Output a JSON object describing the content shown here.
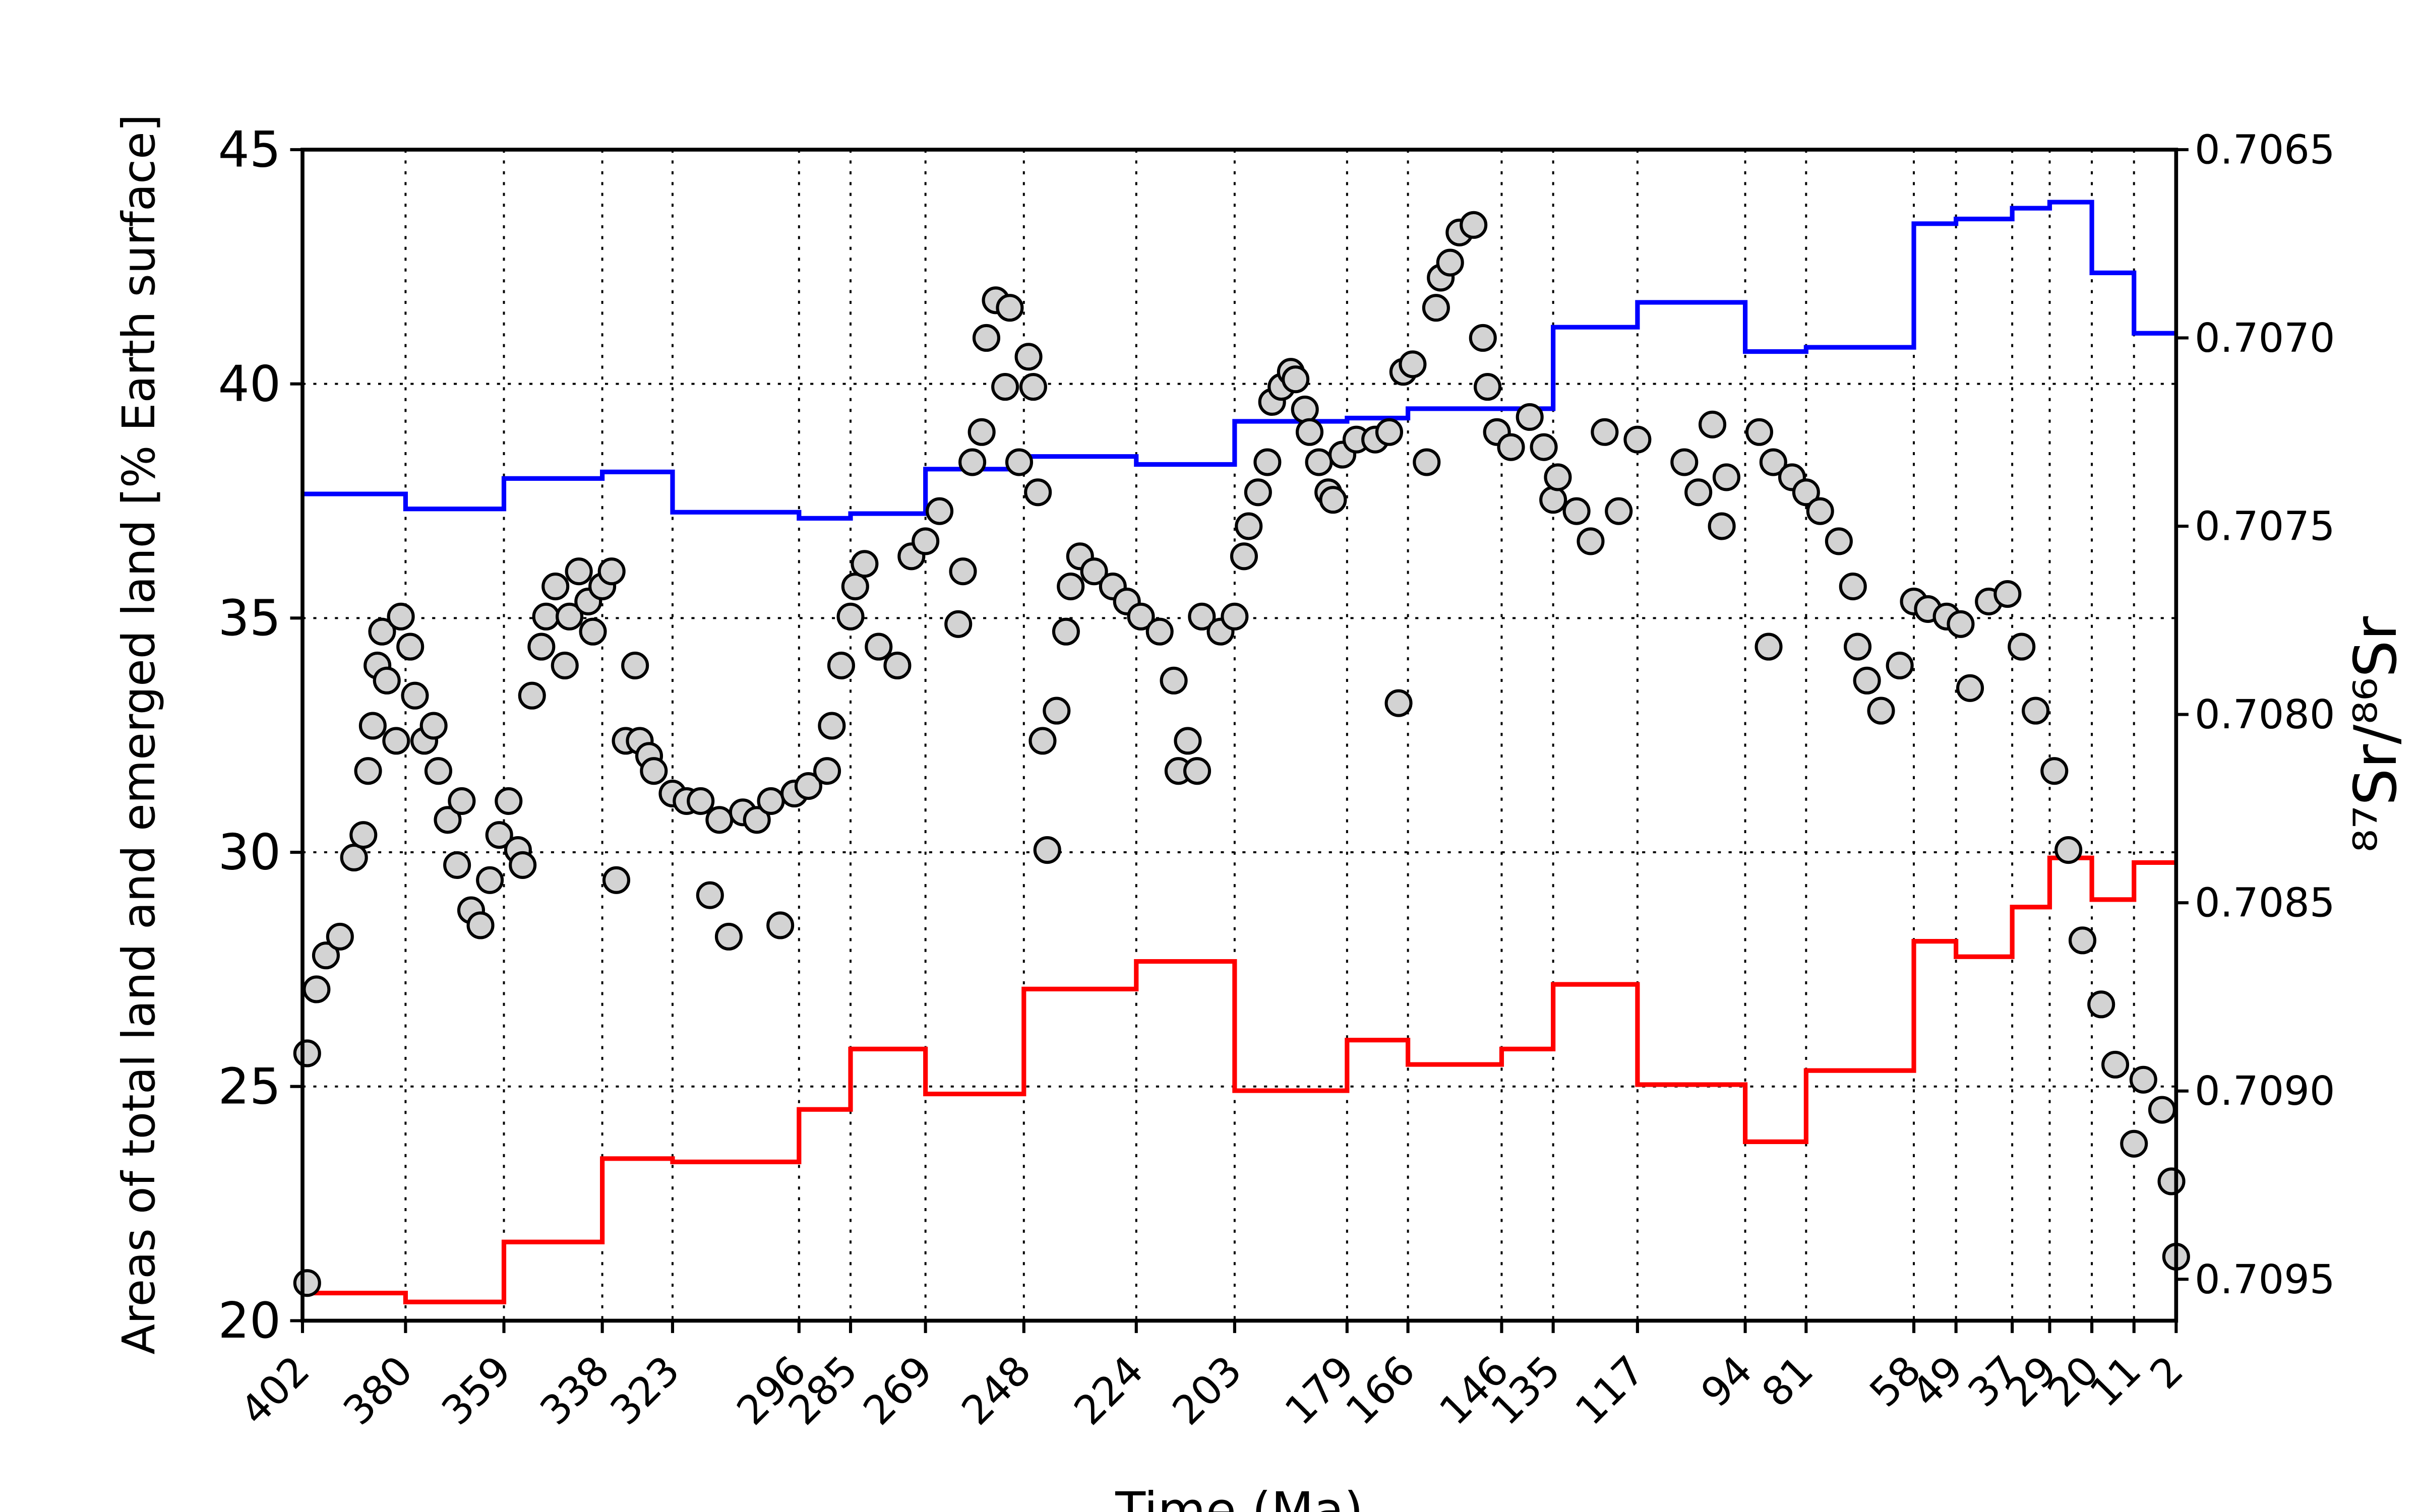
{
  "chart_data": {
    "type": "line",
    "x_label": "Time (Ma)",
    "y_label": "Areas of total land and emerged land [% Earth surface]",
    "y2_label": "⁸⁷Sr/⁸⁶Sr",
    "xlim": [
      402,
      2
    ],
    "xticks": [
      402,
      380,
      359,
      338,
      323,
      296,
      285,
      269,
      248,
      224,
      203,
      179,
      166,
      146,
      135,
      117,
      94,
      81,
      58,
      49,
      37,
      29,
      20,
      11,
      2
    ],
    "ylim": [
      20,
      45
    ],
    "yticks": [
      20,
      25,
      30,
      35,
      40,
      45
    ],
    "y2lim": [
      0.70961,
      0.7065
    ],
    "y2ticks": [
      {
        "value": 0.7065,
        "label": "0.7065"
      },
      {
        "value": 0.707,
        "label": "0.7070"
      },
      {
        "value": 0.7075,
        "label": "0.7075"
      },
      {
        "value": 0.708,
        "label": "0.7080"
      },
      {
        "value": 0.7085,
        "label": "0.7085"
      },
      {
        "value": 0.709,
        "label": "0.7090"
      },
      {
        "value": 0.7095,
        "label": "0.7095"
      }
    ],
    "grid": true,
    "series": [
      {
        "type": "step",
        "color": "#0000ff",
        "x": [
          402,
          380,
          359,
          338,
          323,
          296,
          285,
          269,
          248,
          224,
          203,
          179,
          166,
          146,
          135,
          117,
          94,
          81,
          58,
          49,
          37,
          29,
          20,
          11,
          2
        ],
        "values": [
          37.65,
          37.33,
          37.98,
          38.12,
          37.26,
          37.13,
          37.23,
          38.18,
          38.45,
          38.28,
          39.2,
          39.27,
          39.47,
          39.47,
          41.21,
          41.74,
          40.69,
          40.78,
          43.42,
          43.52,
          43.75,
          43.88,
          42.37,
          41.08,
          41.08
        ]
      },
      {
        "type": "step",
        "color": "#ff0000",
        "x": [
          402,
          380,
          359,
          338,
          323,
          296,
          285,
          269,
          248,
          224,
          203,
          179,
          166,
          146,
          135,
          117,
          94,
          81,
          58,
          49,
          37,
          29,
          20,
          11,
          2
        ],
        "values": [
          20.59,
          20.4,
          21.68,
          23.46,
          23.39,
          24.51,
          25.8,
          24.84,
          27.08,
          27.67,
          24.91,
          25.99,
          25.47,
          25.8,
          27.18,
          25.04,
          23.82,
          25.34,
          28.1,
          27.77,
          28.83,
          29.88,
          28.99,
          29.78,
          29.78
        ]
      },
      {
        "type": "scatter",
        "axis": "y2",
        "color": "#d3d3d3",
        "x": [
          401,
          401,
          399,
          397,
          394,
          391,
          389,
          388,
          387,
          386,
          385,
          384,
          382,
          381,
          379,
          378,
          376,
          374,
          373,
          371,
          369,
          368,
          366,
          364,
          362,
          360,
          358,
          356,
          355,
          353,
          351,
          350,
          348,
          346,
          345,
          343,
          341,
          340,
          338,
          336,
          335,
          333,
          331,
          330,
          328,
          327,
          323,
          320,
          317,
          315,
          313,
          311,
          308,
          305,
          302,
          300,
          297,
          294,
          290,
          289,
          287,
          285,
          284,
          282,
          279,
          275,
          272,
          269,
          266,
          262,
          261,
          259,
          257,
          256,
          254,
          252,
          251,
          249,
          247,
          246,
          245,
          244,
          243,
          241,
          239,
          238,
          236,
          233,
          229,
          226,
          223,
          219,
          216,
          215,
          213,
          211,
          210,
          206,
          203,
          201,
          200,
          198,
          196,
          195,
          193,
          191,
          190,
          188,
          187,
          185,
          183,
          182,
          180,
          177,
          173,
          170,
          168,
          167,
          165,
          162,
          160,
          159,
          157,
          155,
          152,
          150,
          149,
          147,
          144,
          140,
          137,
          135,
          134,
          130,
          127,
          124,
          121,
          117,
          107,
          104,
          101,
          99,
          98,
          91,
          89,
          88,
          84,
          81,
          78,
          74,
          71,
          70,
          68,
          65,
          61,
          58,
          55,
          51,
          48,
          46,
          42,
          38,
          35,
          32,
          28,
          25,
          22,
          18,
          15,
          11,
          9,
          5,
          3,
          2
        ],
        "values": [
          0.70951,
          0.7089,
          0.70873,
          0.70864,
          0.70859,
          0.70838,
          0.70832,
          0.70815,
          0.70803,
          0.70787,
          0.70778,
          0.70791,
          0.70807,
          0.70774,
          0.70782,
          0.70795,
          0.70807,
          0.70803,
          0.70815,
          0.70828,
          0.7084,
          0.70823,
          0.70852,
          0.70856,
          0.70844,
          0.70832,
          0.70823,
          0.70836,
          0.7084,
          0.70795,
          0.70782,
          0.70774,
          0.70766,
          0.70787,
          0.70774,
          0.70762,
          0.7077,
          0.70778,
          0.70766,
          0.70762,
          0.70844,
          0.70807,
          0.70787,
          0.70807,
          0.70811,
          0.70815,
          0.70821,
          0.70823,
          0.70823,
          0.70848,
          0.70828,
          0.70859,
          0.70826,
          0.70828,
          0.70823,
          0.70856,
          0.70821,
          0.70819,
          0.70815,
          0.70803,
          0.70787,
          0.70774,
          0.70766,
          0.7076,
          0.70782,
          0.70787,
          0.70758,
          0.70754,
          0.70746,
          0.70776,
          0.70762,
          0.70733,
          0.70725,
          0.707,
          0.7069,
          0.70713,
          0.70692,
          0.70733,
          0.70705,
          0.70713,
          0.70741,
          0.70807,
          0.70836,
          0.70799,
          0.70778,
          0.70766,
          0.70758,
          0.70762,
          0.70766,
          0.7077,
          0.70774,
          0.70778,
          0.70791,
          0.70815,
          0.70807,
          0.70815,
          0.70774,
          0.70778,
          0.70774,
          0.70758,
          0.7075,
          0.70741,
          0.70733,
          0.70717,
          0.70713,
          0.70709,
          0.70711,
          0.70719,
          0.70725,
          0.70733,
          0.70741,
          0.70743,
          0.70731,
          0.70727,
          0.70727,
          0.70725,
          0.70797,
          0.70709,
          0.70707,
          0.70733,
          0.70692,
          0.70684,
          0.7068,
          0.70672,
          0.7067,
          0.707,
          0.70713,
          0.70725,
          0.70729,
          0.70721,
          0.70729,
          0.70743,
          0.70737,
          0.70746,
          0.70754,
          0.70725,
          0.70746,
          0.70727,
          0.70733,
          0.70741,
          0.70723,
          0.7075,
          0.70737,
          0.70725,
          0.70782,
          0.70733,
          0.70737,
          0.70741,
          0.70746,
          0.70754,
          0.70766,
          0.70782,
          0.70791,
          0.70799,
          0.70787,
          0.7077,
          0.70772,
          0.70774,
          0.70776,
          0.70793,
          0.7077,
          0.70768,
          0.70782,
          0.70799,
          0.70815,
          0.70836,
          0.7086,
          0.70877,
          0.70893,
          0.70914,
          0.70897,
          0.70905,
          0.70924,
          0.70944
        ]
      }
    ]
  }
}
